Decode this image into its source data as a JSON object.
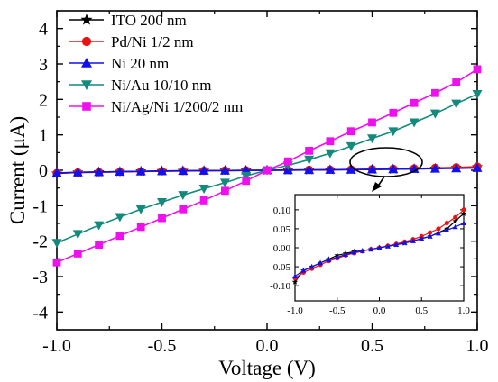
{
  "chart_data": {
    "type": "line",
    "xlabel": "Voltage (V)",
    "ylabel": "Current (μA)",
    "xlim": [
      -1.0,
      1.0
    ],
    "ylim": [
      -4.5,
      4.5
    ],
    "x_ticks": [
      "-1.0",
      "-0.5",
      "0.0",
      "0.5",
      "1.0"
    ],
    "y_ticks": [
      "-4",
      "-3",
      "-2",
      "-1",
      "0",
      "1",
      "2",
      "3",
      "4"
    ],
    "grid": false,
    "legend": "top-left",
    "series": [
      {
        "name": "ITO 200 nm",
        "color": "#000000",
        "marker": "star",
        "x": [
          -1.0,
          -0.9,
          -0.8,
          -0.7,
          -0.6,
          -0.5,
          -0.4,
          -0.3,
          -0.2,
          -0.1,
          0.0,
          0.1,
          0.2,
          0.3,
          0.4,
          0.5,
          0.6,
          0.7,
          0.8,
          0.9,
          1.0
        ],
        "y": [
          -0.09,
          -0.06,
          -0.05,
          -0.04,
          -0.03,
          -0.02,
          -0.015,
          -0.01,
          -0.008,
          -0.004,
          0.0,
          0.004,
          0.008,
          0.012,
          0.018,
          0.024,
          0.03,
          0.04,
          0.05,
          0.07,
          0.09
        ]
      },
      {
        "name": "Pd/Ni 1/2 nm",
        "color": "#ee1111",
        "marker": "circle",
        "x": [
          -1.0,
          -0.9,
          -0.8,
          -0.7,
          -0.6,
          -0.5,
          -0.4,
          -0.3,
          -0.2,
          -0.1,
          0.0,
          0.1,
          0.2,
          0.3,
          0.4,
          0.5,
          0.6,
          0.7,
          0.8,
          0.9,
          1.0
        ],
        "y": [
          -0.08,
          -0.065,
          -0.055,
          -0.045,
          -0.035,
          -0.028,
          -0.02,
          -0.014,
          -0.009,
          -0.004,
          0.0,
          0.005,
          0.01,
          0.016,
          0.022,
          0.03,
          0.04,
          0.05,
          0.065,
          0.08,
          0.1
        ]
      },
      {
        "name": "Ni 20 nm",
        "color": "#1111ee",
        "marker": "triangle-up",
        "x": [
          -1.0,
          -0.9,
          -0.8,
          -0.7,
          -0.6,
          -0.5,
          -0.4,
          -0.3,
          -0.2,
          -0.1,
          0.0,
          0.1,
          0.2,
          0.3,
          0.4,
          0.5,
          0.6,
          0.7,
          0.8,
          0.9,
          1.0
        ],
        "y": [
          -0.075,
          -0.06,
          -0.05,
          -0.04,
          -0.032,
          -0.025,
          -0.018,
          -0.012,
          -0.008,
          -0.004,
          0.0,
          0.004,
          0.008,
          0.013,
          0.018,
          0.024,
          0.03,
          0.038,
          0.046,
          0.055,
          0.065
        ]
      },
      {
        "name": "Ni/Au 10/10 nm",
        "color": "#138a7c",
        "marker": "triangle-down",
        "x": [
          -1.0,
          -0.9,
          -0.8,
          -0.7,
          -0.6,
          -0.5,
          -0.4,
          -0.3,
          -0.2,
          -0.1,
          0.0,
          0.1,
          0.2,
          0.3,
          0.4,
          0.5,
          0.6,
          0.7,
          0.8,
          0.9,
          1.0
        ],
        "y": [
          -2.05,
          -1.8,
          -1.55,
          -1.32,
          -1.1,
          -0.9,
          -0.7,
          -0.52,
          -0.35,
          -0.16,
          0.0,
          0.14,
          0.3,
          0.48,
          0.68,
          0.9,
          1.1,
          1.35,
          1.6,
          1.88,
          2.15
        ]
      },
      {
        "name": "Ni/Ag/Ni 1/200/2 nm",
        "color": "#ee11ee",
        "marker": "square",
        "x": [
          -1.0,
          -0.9,
          -0.8,
          -0.7,
          -0.6,
          -0.5,
          -0.4,
          -0.3,
          -0.2,
          -0.1,
          0.0,
          0.1,
          0.2,
          0.3,
          0.4,
          0.5,
          0.6,
          0.7,
          0.8,
          0.9,
          1.0
        ],
        "y": [
          -2.6,
          -2.35,
          -2.1,
          -1.85,
          -1.6,
          -1.35,
          -1.1,
          -0.85,
          -0.58,
          -0.3,
          0.0,
          0.25,
          0.55,
          0.82,
          1.1,
          1.35,
          1.62,
          1.9,
          2.18,
          2.48,
          2.85
        ]
      }
    ],
    "inset": {
      "xlim": [
        -1.0,
        1.0
      ],
      "ylim": [
        -0.14,
        0.14
      ],
      "x_ticks": [
        "-1.0",
        "-0.5",
        "0.0",
        "0.5",
        "1.0"
      ],
      "y_ticks": [
        "-0.10",
        "-0.05",
        "0.00",
        "0.05",
        "0.10"
      ],
      "series_shown": [
        "ITO 200 nm",
        "Pd/Ni 1/2 nm",
        "Ni 20 nm"
      ]
    }
  }
}
